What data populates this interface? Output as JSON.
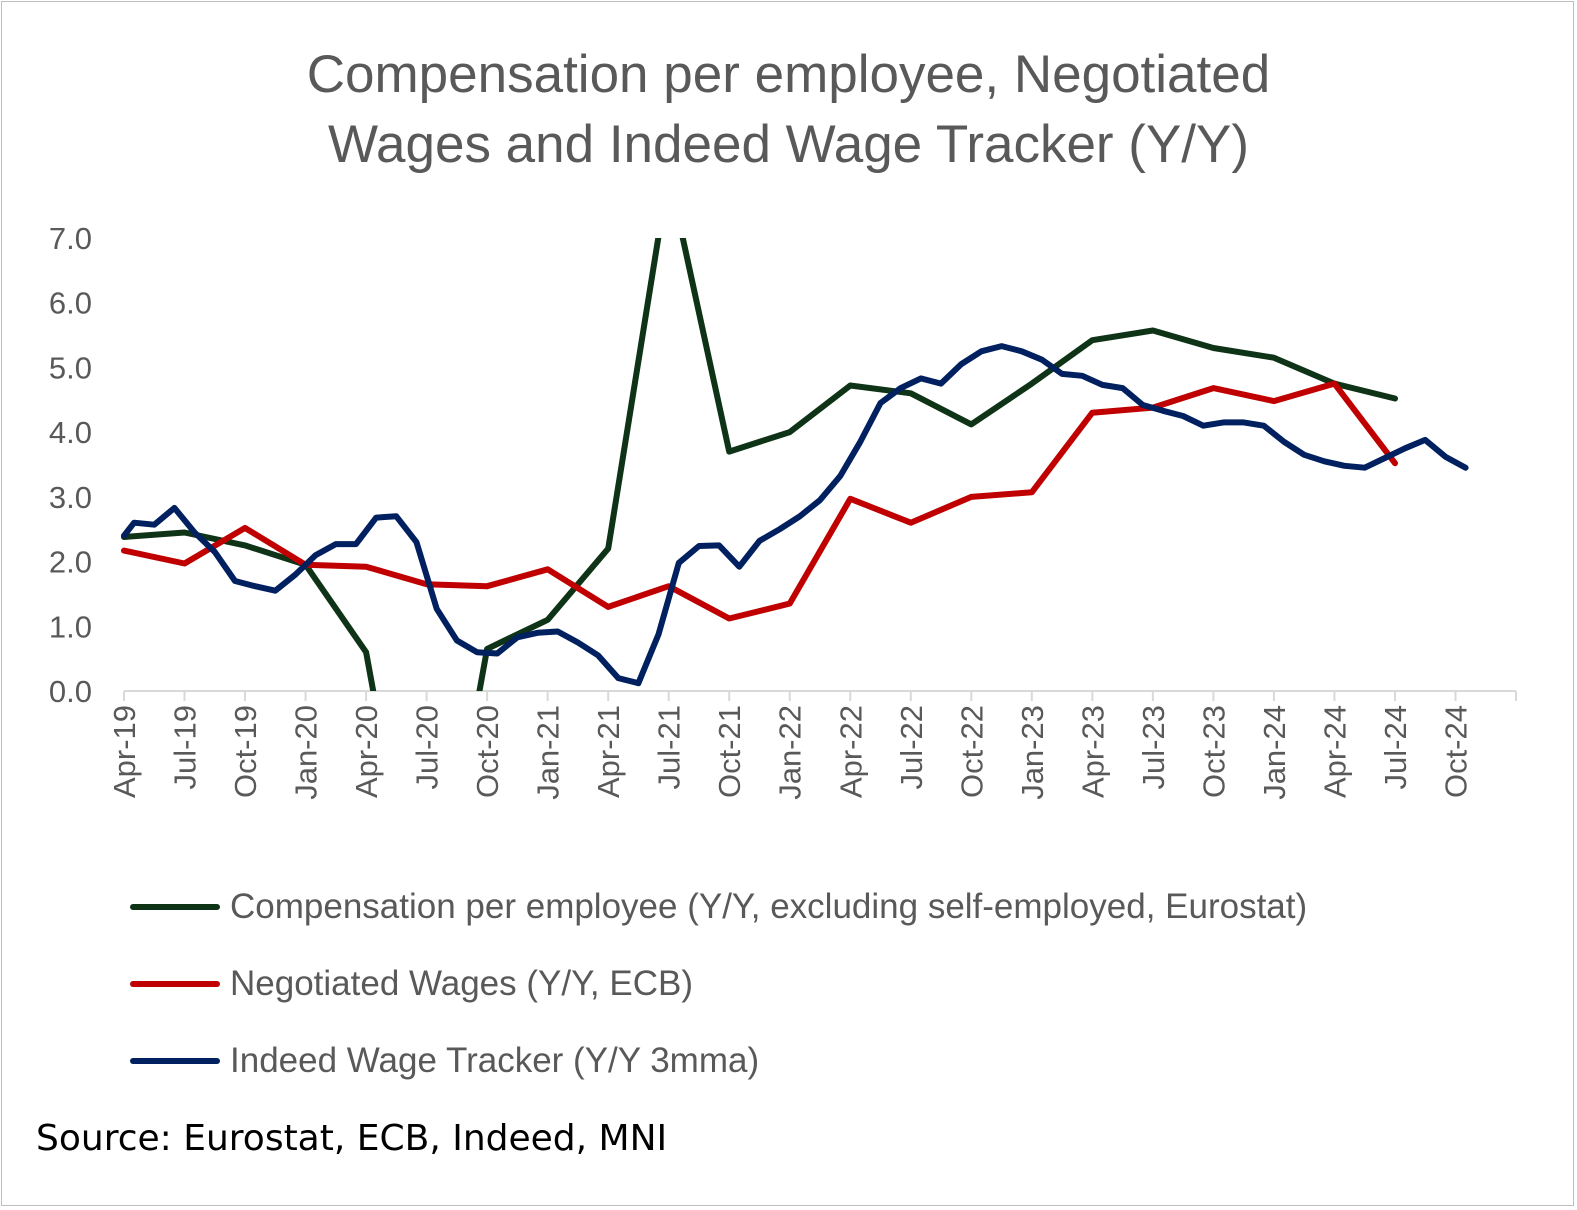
{
  "chart_data": {
    "type": "line",
    "title": [
      "Compensation per employee, Negotiated",
      "Wages and Indeed Wage Tracker (Y/Y)"
    ],
    "xlabel": "",
    "ylabel": "",
    "ylim": [
      0,
      7
    ],
    "xlim_months_from_apr19": [
      0,
      69
    ],
    "yticks": [
      "0.0",
      "1.0",
      "2.0",
      "3.0",
      "4.0",
      "5.0",
      "6.0",
      "7.0"
    ],
    "xticks": [
      "Apr-19",
      "Jul-19",
      "Oct-19",
      "Jan-20",
      "Apr-20",
      "Jul-20",
      "Oct-20",
      "Jan-21",
      "Apr-21",
      "Jul-21",
      "Oct-21",
      "Jan-22",
      "Apr-22",
      "Jul-22",
      "Oct-22",
      "Jan-23",
      "Apr-23",
      "Jul-23",
      "Oct-23",
      "Jan-24",
      "Apr-24",
      "Jul-24",
      "Oct-24"
    ],
    "grid": false,
    "legend_position": "bottom",
    "series": [
      {
        "name": "Compensation per employee (Y/Y, excluding self-employed, Eurostat)",
        "color": "#0e3316",
        "x": [
          0,
          3,
          6,
          9,
          12,
          15,
          18,
          21,
          24,
          27,
          30,
          33,
          36,
          39,
          42,
          45,
          48,
          51,
          54,
          57,
          60,
          63
        ],
        "values": [
          2.38,
          2.45,
          2.25,
          1.95,
          0.6,
          -4.5,
          0.65,
          1.1,
          2.2,
          8.0,
          3.7,
          4.0,
          4.72,
          4.6,
          4.12,
          4.75,
          5.42,
          5.57,
          5.3,
          5.15,
          4.75,
          4.52
        ]
      },
      {
        "name": "Negotiated Wages (Y/Y, ECB)",
        "color": "#c00000",
        "x": [
          0,
          3,
          6,
          9,
          12,
          15,
          18,
          21,
          24,
          27,
          30,
          33,
          36,
          39,
          42,
          45,
          48,
          51,
          54,
          57,
          60,
          63
        ],
        "values": [
          2.17,
          1.97,
          2.52,
          1.95,
          1.92,
          1.65,
          1.62,
          1.88,
          1.3,
          1.62,
          1.12,
          1.35,
          2.97,
          2.6,
          3.0,
          3.07,
          4.3,
          4.38,
          4.68,
          4.48,
          4.75,
          3.52
        ]
      },
      {
        "name": "Indeed Wage Tracker (Y/Y 3mma)",
        "color": "#002060",
        "x": [
          0,
          0.5,
          1.5,
          2.5,
          3.5,
          4.5,
          5.5,
          6.5,
          7.5,
          8.5,
          9.5,
          10.5,
          11.5,
          12.5,
          13.5,
          14.5,
          15.5,
          16.5,
          17.5,
          18.5,
          19.5,
          20.5,
          21.5,
          22.5,
          23.5,
          24.5,
          25.5,
          26.5,
          27.5,
          28.5,
          29.5,
          30.5,
          31.5,
          32.5,
          33.5,
          34.5,
          35.5,
          36.5,
          37.5,
          38.5,
          39.5,
          40.5,
          41.5,
          42.5,
          43.5,
          44.5,
          45.5,
          46.5,
          47.5,
          48.5,
          49.5,
          50.5,
          51.5,
          52.5,
          53.5,
          54.5,
          55.5,
          56.5,
          57.5,
          58.5,
          59.5,
          60.5,
          61.5,
          62.5,
          63.5,
          64.5,
          65.5,
          66.5
        ],
        "values": [
          2.4,
          2.6,
          2.57,
          2.83,
          2.45,
          2.15,
          1.7,
          1.62,
          1.55,
          1.8,
          2.1,
          2.27,
          2.27,
          2.68,
          2.7,
          2.3,
          1.27,
          0.78,
          0.6,
          0.58,
          0.83,
          0.9,
          0.92,
          0.75,
          0.55,
          0.2,
          0.12,
          0.88,
          1.98,
          2.24,
          2.25,
          1.92,
          2.32,
          2.5,
          2.7,
          2.95,
          3.32,
          3.85,
          4.45,
          4.68,
          4.83,
          4.75,
          5.05,
          5.25,
          5.33,
          5.25,
          5.12,
          4.9,
          4.87,
          4.73,
          4.68,
          4.42,
          4.33,
          4.25,
          4.1,
          4.15,
          4.15,
          4.1,
          3.85,
          3.65,
          3.55,
          3.48,
          3.45,
          3.6,
          3.75,
          3.88,
          3.62,
          3.45
        ]
      }
    ]
  },
  "source": "Source: Eurostat, ECB, Indeed, MNI"
}
